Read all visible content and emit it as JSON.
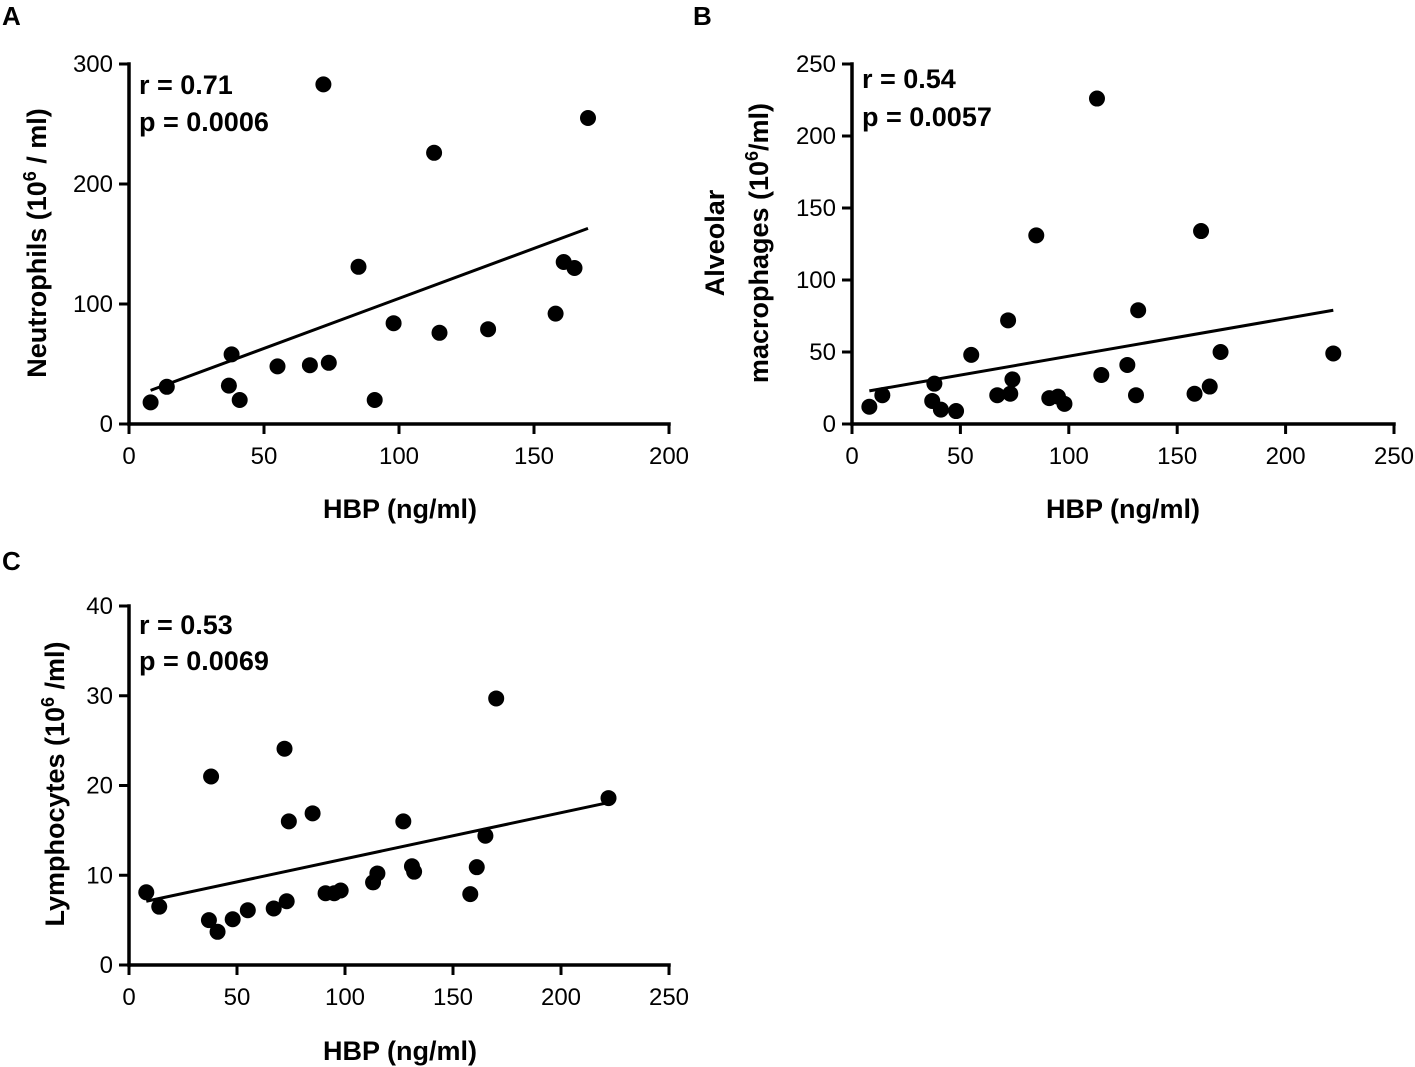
{
  "chart_data": [
    {
      "type": "scatter",
      "panel_label": "A",
      "xlabel": "HBP (ng/ml)",
      "ylabel": {
        "pre": "Neutrophils (10",
        "sup": "6",
        "post": " / ml)"
      },
      "xlim": [
        0,
        200
      ],
      "ylim": [
        0,
        300
      ],
      "x_ticks": [
        "0",
        "50",
        "100",
        "150",
        "200"
      ],
      "y_ticks": [
        "0",
        "100",
        "200",
        "300"
      ],
      "annotations": [
        "r  = 0.71",
        "p = 0.0006"
      ],
      "points": [
        {
          "x": 8,
          "y": 18
        },
        {
          "x": 14,
          "y": 31
        },
        {
          "x": 37,
          "y": 32
        },
        {
          "x": 38,
          "y": 58
        },
        {
          "x": 41,
          "y": 20
        },
        {
          "x": 55,
          "y": 48
        },
        {
          "x": 67,
          "y": 49
        },
        {
          "x": 72,
          "y": 283
        },
        {
          "x": 74,
          "y": 51
        },
        {
          "x": 85,
          "y": 131
        },
        {
          "x": 91,
          "y": 20
        },
        {
          "x": 98,
          "y": 84
        },
        {
          "x": 113,
          "y": 226
        },
        {
          "x": 115,
          "y": 76
        },
        {
          "x": 133,
          "y": 79
        },
        {
          "x": 158,
          "y": 92
        },
        {
          "x": 161,
          "y": 135
        },
        {
          "x": 165,
          "y": 130
        },
        {
          "x": 170,
          "y": 255
        }
      ],
      "fit_line": {
        "x": [
          8,
          170
        ],
        "y": [
          28,
          163
        ]
      }
    },
    {
      "type": "scatter",
      "panel_label": "B",
      "xlabel": "HBP (ng/ml)",
      "ylabel": {
        "line1": "Alveolar",
        "pre": "macrophages (10",
        "sup": "6",
        "post": "/ml)"
      },
      "xlim": [
        0,
        250
      ],
      "ylim": [
        0,
        250
      ],
      "x_ticks": [
        "0",
        "50",
        "100",
        "150",
        "200",
        "250"
      ],
      "y_ticks": [
        "0",
        "50",
        "100",
        "150",
        "200",
        "250"
      ],
      "annotations": [
        "r = 0.54",
        "p = 0.0057"
      ],
      "points": [
        {
          "x": 8,
          "y": 12
        },
        {
          "x": 14,
          "y": 20
        },
        {
          "x": 37,
          "y": 16
        },
        {
          "x": 38,
          "y": 28
        },
        {
          "x": 41,
          "y": 10
        },
        {
          "x": 48,
          "y": 9
        },
        {
          "x": 55,
          "y": 48
        },
        {
          "x": 67,
          "y": 20
        },
        {
          "x": 72,
          "y": 72
        },
        {
          "x": 73,
          "y": 21
        },
        {
          "x": 74,
          "y": 31
        },
        {
          "x": 91,
          "y": 18
        },
        {
          "x": 95,
          "y": 19
        },
        {
          "x": 98,
          "y": 14
        },
        {
          "x": 85,
          "y": 131
        },
        {
          "x": 113,
          "y": 226
        },
        {
          "x": 115,
          "y": 34
        },
        {
          "x": 127,
          "y": 41
        },
        {
          "x": 131,
          "y": 20
        },
        {
          "x": 132,
          "y": 79
        },
        {
          "x": 158,
          "y": 21
        },
        {
          "x": 161,
          "y": 134
        },
        {
          "x": 165,
          "y": 26
        },
        {
          "x": 170,
          "y": 50
        },
        {
          "x": 222,
          "y": 49
        }
      ],
      "fit_line": {
        "x": [
          8,
          222
        ],
        "y": [
          23,
          79
        ]
      }
    },
    {
      "type": "scatter",
      "panel_label": "C",
      "xlabel": "HBP (ng/ml)",
      "ylabel": {
        "pre": "Lymphocytes (10",
        "sup": "6",
        "post": " /ml)"
      },
      "xlim": [
        0,
        250
      ],
      "ylim": [
        0,
        40
      ],
      "x_ticks": [
        "0",
        "50",
        "100",
        "150",
        "200",
        "250"
      ],
      "y_ticks": [
        "0",
        "10",
        "20",
        "30",
        "40"
      ],
      "annotations": [
        "r  = 0.53",
        "p = 0.0069"
      ],
      "points": [
        {
          "x": 8,
          "y": 8.1
        },
        {
          "x": 14,
          "y": 6.5
        },
        {
          "x": 37,
          "y": 5.0
        },
        {
          "x": 38,
          "y": 21.0
        },
        {
          "x": 41,
          "y": 3.7
        },
        {
          "x": 48,
          "y": 5.1
        },
        {
          "x": 55,
          "y": 6.1
        },
        {
          "x": 67,
          "y": 6.3
        },
        {
          "x": 72,
          "y": 24.1
        },
        {
          "x": 73,
          "y": 7.1
        },
        {
          "x": 74,
          "y": 16.0
        },
        {
          "x": 85,
          "y": 16.9
        },
        {
          "x": 91,
          "y": 8.0
        },
        {
          "x": 95,
          "y": 8.0
        },
        {
          "x": 98,
          "y": 8.3
        },
        {
          "x": 113,
          "y": 9.2
        },
        {
          "x": 115,
          "y": 10.2
        },
        {
          "x": 127,
          "y": 16.0
        },
        {
          "x": 131,
          "y": 11.0
        },
        {
          "x": 132,
          "y": 10.4
        },
        {
          "x": 158,
          "y": 7.9
        },
        {
          "x": 161,
          "y": 10.9
        },
        {
          "x": 165,
          "y": 14.4
        },
        {
          "x": 170,
          "y": 29.7
        },
        {
          "x": 222,
          "y": 18.6
        }
      ],
      "fit_line": {
        "x": [
          8,
          222
        ],
        "y": [
          7.1,
          18.1
        ]
      }
    }
  ]
}
